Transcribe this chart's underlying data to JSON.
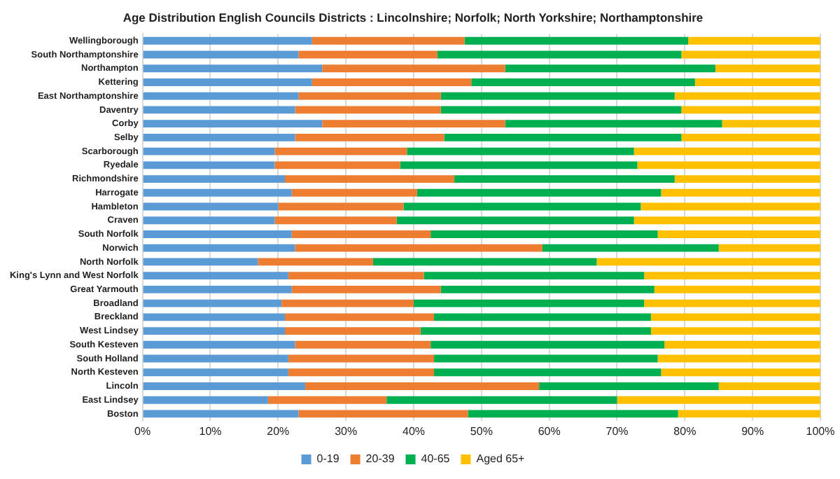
{
  "chart_data": {
    "type": "bar",
    "orientation": "horizontal",
    "stacked": true,
    "title": "Age Distribution English Councils Districts : Lincolnshire; Norfolk; North Yorkshire; Northamptonshire",
    "categories": [
      "Wellingborough",
      "South Northamptonshire",
      "Northampton",
      "Kettering",
      "East Northamptonshire",
      "Daventry",
      "Corby",
      "Selby",
      "Scarborough",
      "Ryedale",
      "Richmondshire",
      "Harrogate",
      "Hambleton",
      "Craven",
      "South Norfolk",
      "Norwich",
      "North Norfolk",
      "King's Lynn and West Norfolk",
      "Great Yarmouth",
      "Broadland",
      "Breckland",
      "West Lindsey",
      "South Kesteven",
      "South Holland",
      "North Kesteven",
      "Lincoln",
      "East Lindsey",
      "Boston"
    ],
    "series": [
      {
        "name": "0-19",
        "color": "#5b9bd5",
        "values": [
          25,
          23,
          26.5,
          25,
          23,
          22.5,
          26.5,
          22.5,
          19.5,
          19.5,
          21,
          22,
          20,
          19.5,
          22,
          22.5,
          17,
          21.5,
          22,
          20.5,
          21,
          21,
          22.5,
          21.5,
          21.5,
          24,
          18.5,
          23
        ]
      },
      {
        "name": "20-39",
        "color": "#ed7d31",
        "values": [
          22.5,
          20.5,
          27,
          23.5,
          21,
          21.5,
          27,
          22,
          19.5,
          18.5,
          25,
          18.5,
          18.5,
          18,
          20.5,
          36.5,
          17,
          20,
          22,
          19.5,
          22,
          20,
          20,
          21.5,
          21.5,
          34.5,
          17.5,
          25
        ]
      },
      {
        "name": "40-65",
        "color": "#00b050",
        "values": [
          33,
          36,
          31,
          33,
          34.5,
          35.5,
          32,
          35,
          33.5,
          35,
          32.5,
          36,
          35,
          35,
          33.5,
          26,
          33,
          32.5,
          31.5,
          34,
          32,
          34,
          34.5,
          33,
          33.5,
          26.5,
          34,
          31
        ]
      },
      {
        "name": "Aged 65+",
        "color": "#ffc000",
        "values": [
          19.5,
          20.5,
          15.5,
          18.5,
          21.5,
          20.5,
          14.5,
          20.5,
          27.5,
          27,
          21.5,
          23.5,
          26.5,
          27.5,
          24,
          15,
          33,
          26,
          24.5,
          26,
          25,
          25,
          23,
          24,
          23.5,
          15,
          30,
          21
        ]
      }
    ],
    "xlim": [
      0,
      100
    ],
    "xticks": [
      {
        "value": 0,
        "label": "0%"
      },
      {
        "value": 10,
        "label": "10%"
      },
      {
        "value": 20,
        "label": "20%"
      },
      {
        "value": 30,
        "label": "30%"
      },
      {
        "value": 40,
        "label": "40%"
      },
      {
        "value": 50,
        "label": "50%"
      },
      {
        "value": 60,
        "label": "60%"
      },
      {
        "value": 70,
        "label": "70%"
      },
      {
        "value": 80,
        "label": "80%"
      },
      {
        "value": 90,
        "label": "90%"
      },
      {
        "value": 100,
        "label": "100%"
      }
    ],
    "grid": "x",
    "legend": "bottom"
  }
}
